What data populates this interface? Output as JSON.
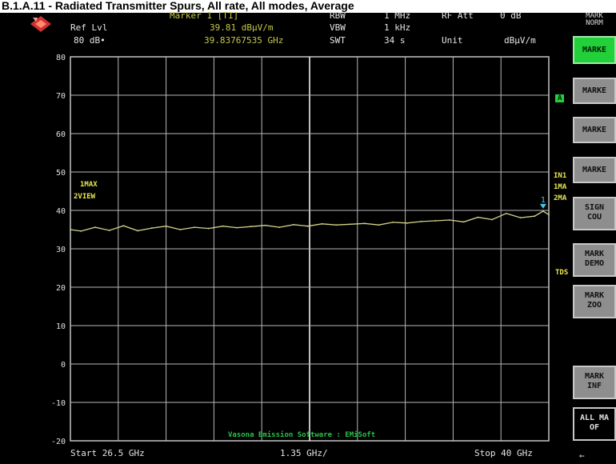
{
  "page_title": "B.1.A.11 - Radiated Transmitter Spurs, All rate, All modes, Average",
  "header": {
    "ref_lvl_label": "Ref Lvl",
    "ref_lvl_value": "80 dB•",
    "marker_title": "Marker 1 [T1]",
    "marker_level": "39.81 dBµV/m",
    "marker_freq": "39.83767535 GHz",
    "rbw_label": "RBW",
    "rbw_value": "1 MHz",
    "vbw_label": "VBW",
    "vbw_value": "1 kHz",
    "swt_label": "SWT",
    "swt_value": "34 s",
    "rfatt_label": "RF Att",
    "rfatt_value": "0 dB",
    "unit_label": "Unit",
    "unit_value": "dBµV/m"
  },
  "trace_labels": {
    "line1": "1MAX",
    "line2": "2VIEW"
  },
  "right_tags": {
    "a": "A",
    "in1": "IN1",
    "ima": "1MA",
    "zma": "2MA",
    "tds": "TDS"
  },
  "softkeys": {
    "top_label": "MARK\nNORM",
    "items": [
      {
        "label": "MARKE",
        "style": "green"
      },
      {
        "label": "MARKE",
        "style": "grey"
      },
      {
        "label": "MARKE",
        "style": "grey"
      },
      {
        "label": "MARKE",
        "style": "grey"
      },
      {
        "label": "SIGN\nCOU",
        "style": "grey"
      },
      {
        "label": "MARK\nDEMO",
        "style": "grey"
      },
      {
        "label": "MARK\nZOO",
        "style": "grey"
      },
      {
        "label": "MARK\nINF",
        "style": "grey"
      },
      {
        "label": "ALL MA\nOF",
        "style": "dark"
      }
    ],
    "arrow": "⇐"
  },
  "footer": {
    "start": "Start 26.5 GHz",
    "span": "1.35 GHz/",
    "stop": "Stop 40 GHz",
    "watermark": "Vasona Emission Software : EMiSoft"
  },
  "colors": {
    "trace": "#d2d28c",
    "grid": "#b8b8b8",
    "softkey_active": "#22d03a",
    "marker": "#47c6e6"
  },
  "chart_data": {
    "type": "line",
    "title": "",
    "xlabel": "",
    "ylabel": "",
    "xlim": [
      26.5,
      40
    ],
    "ylim": [
      -20,
      80
    ],
    "yticks": [
      "80",
      "70",
      "60",
      "50",
      "40",
      "30",
      "20",
      "10",
      "0",
      "-10",
      "-20"
    ],
    "grid": true,
    "series": [
      {
        "name": "",
        "x": [
          26.5,
          26.8,
          27.2,
          27.6,
          28.0,
          28.4,
          28.8,
          29.2,
          29.6,
          30.0,
          30.4,
          30.8,
          31.2,
          31.6,
          32.0,
          32.4,
          32.8,
          33.2,
          33.6,
          34.0,
          34.4,
          34.8,
          35.2,
          35.6,
          36.0,
          36.4,
          36.8,
          37.2,
          37.6,
          38.0,
          38.4,
          38.8,
          39.2,
          39.6,
          39.84,
          40.0
        ],
        "y": [
          35.0,
          34.6,
          35.6,
          34.8,
          36.0,
          34.7,
          35.4,
          35.9,
          35.0,
          35.6,
          35.3,
          35.9,
          35.5,
          35.8,
          36.1,
          35.6,
          36.3,
          35.9,
          36.5,
          36.2,
          36.4,
          36.6,
          36.2,
          36.9,
          36.7,
          37.1,
          37.3,
          37.5,
          37.0,
          38.2,
          37.6,
          39.2,
          38.1,
          38.5,
          39.81,
          38.9
        ]
      }
    ],
    "marker": {
      "label": "1",
      "x": 39.84,
      "y": 39.81
    }
  }
}
